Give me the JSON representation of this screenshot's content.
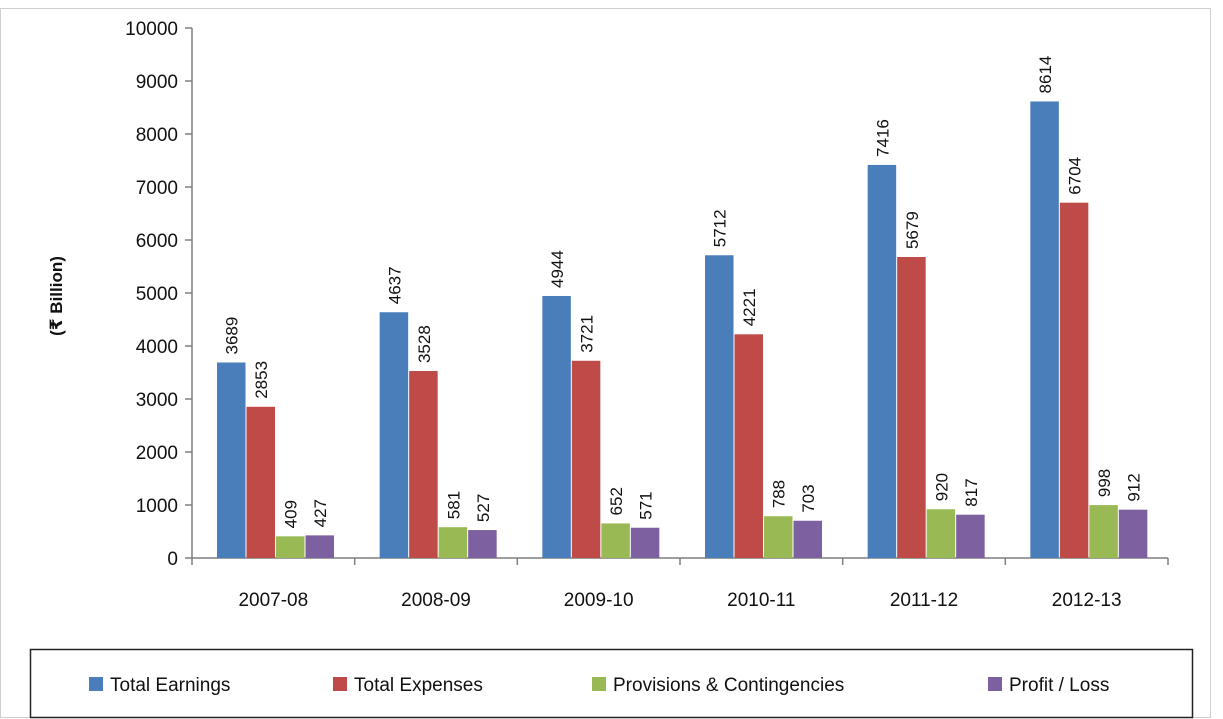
{
  "chart_data": {
    "type": "bar",
    "title": "",
    "xlabel": "",
    "ylabel": "(₹ Billion)",
    "ylim": [
      0,
      10000
    ],
    "yticks": [
      0,
      1000,
      2000,
      3000,
      4000,
      5000,
      6000,
      7000,
      8000,
      9000,
      10000
    ],
    "grid": false,
    "legend_position": "bottom",
    "categories": [
      "2007-08",
      "2008-09",
      "2009-10",
      "2010-11",
      "2011-12",
      "2012-13"
    ],
    "series": [
      {
        "name": "Total Earnings",
        "color": "#4a7ebb",
        "values": [
          3689,
          4637,
          4944,
          5712,
          7416,
          8614
        ]
      },
      {
        "name": "Total Expenses",
        "color": "#be4b48",
        "values": [
          2853,
          3528,
          3721,
          4221,
          5679,
          6704
        ]
      },
      {
        "name": "Provisions & Contingencies",
        "color": "#98b954",
        "values": [
          409,
          581,
          652,
          788,
          920,
          998
        ]
      },
      {
        "name": "Profit / Loss",
        "color": "#7d60a0",
        "values": [
          427,
          527,
          571,
          703,
          817,
          912
        ]
      }
    ]
  }
}
